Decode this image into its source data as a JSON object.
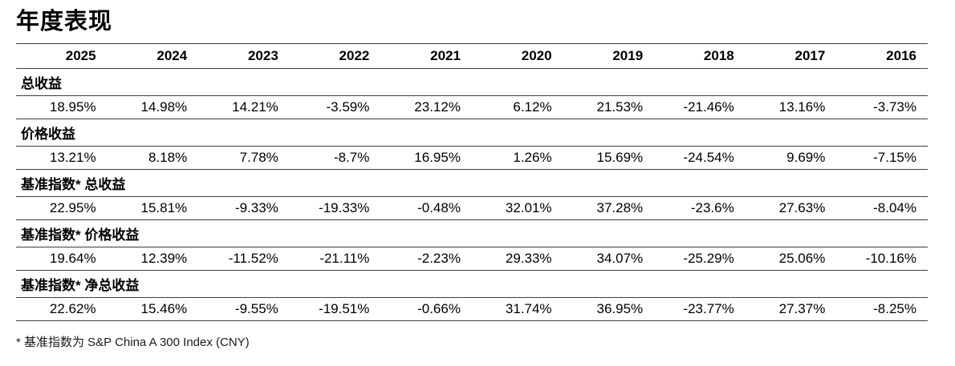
{
  "page": {
    "title": "年度表现",
    "footnote": "* 基准指数为 S&P China A 300 Index (CNY)"
  },
  "chart_data": {
    "type": "table",
    "title": "年度表现",
    "columns": [
      "2025",
      "2024",
      "2023",
      "2022",
      "2021",
      "2020",
      "2019",
      "2018",
      "2017",
      "2016"
    ],
    "sections": [
      {
        "label": "总收益",
        "values": [
          "18.95%",
          "14.98%",
          "14.21%",
          "-3.59%",
          "23.12%",
          "6.12%",
          "21.53%",
          "-21.46%",
          "13.16%",
          "-3.73%"
        ]
      },
      {
        "label": "价格收益",
        "values": [
          "13.21%",
          "8.18%",
          "7.78%",
          "-8.7%",
          "16.95%",
          "1.26%",
          "15.69%",
          "-24.54%",
          "9.69%",
          "-7.15%"
        ]
      },
      {
        "label": "基准指数* 总收益",
        "values": [
          "22.95%",
          "15.81%",
          "-9.33%",
          "-19.33%",
          "-0.48%",
          "32.01%",
          "37.28%",
          "-23.6%",
          "27.63%",
          "-8.04%"
        ]
      },
      {
        "label": "基准指数* 价格收益",
        "values": [
          "19.64%",
          "12.39%",
          "-11.52%",
          "-21.11%",
          "-2.23%",
          "29.33%",
          "34.07%",
          "-25.29%",
          "25.06%",
          "-10.16%"
        ]
      },
      {
        "label": "基准指数* 净总收益",
        "values": [
          "22.62%",
          "15.46%",
          "-9.55%",
          "-19.51%",
          "-0.66%",
          "31.74%",
          "36.95%",
          "-23.77%",
          "27.37%",
          "-8.25%"
        ]
      }
    ],
    "footnote": "* 基准指数为 S&P China A 300 Index (CNY)",
    "layout": {
      "grid": "horizontal-rules-only",
      "value_alignment": "right"
    }
  }
}
